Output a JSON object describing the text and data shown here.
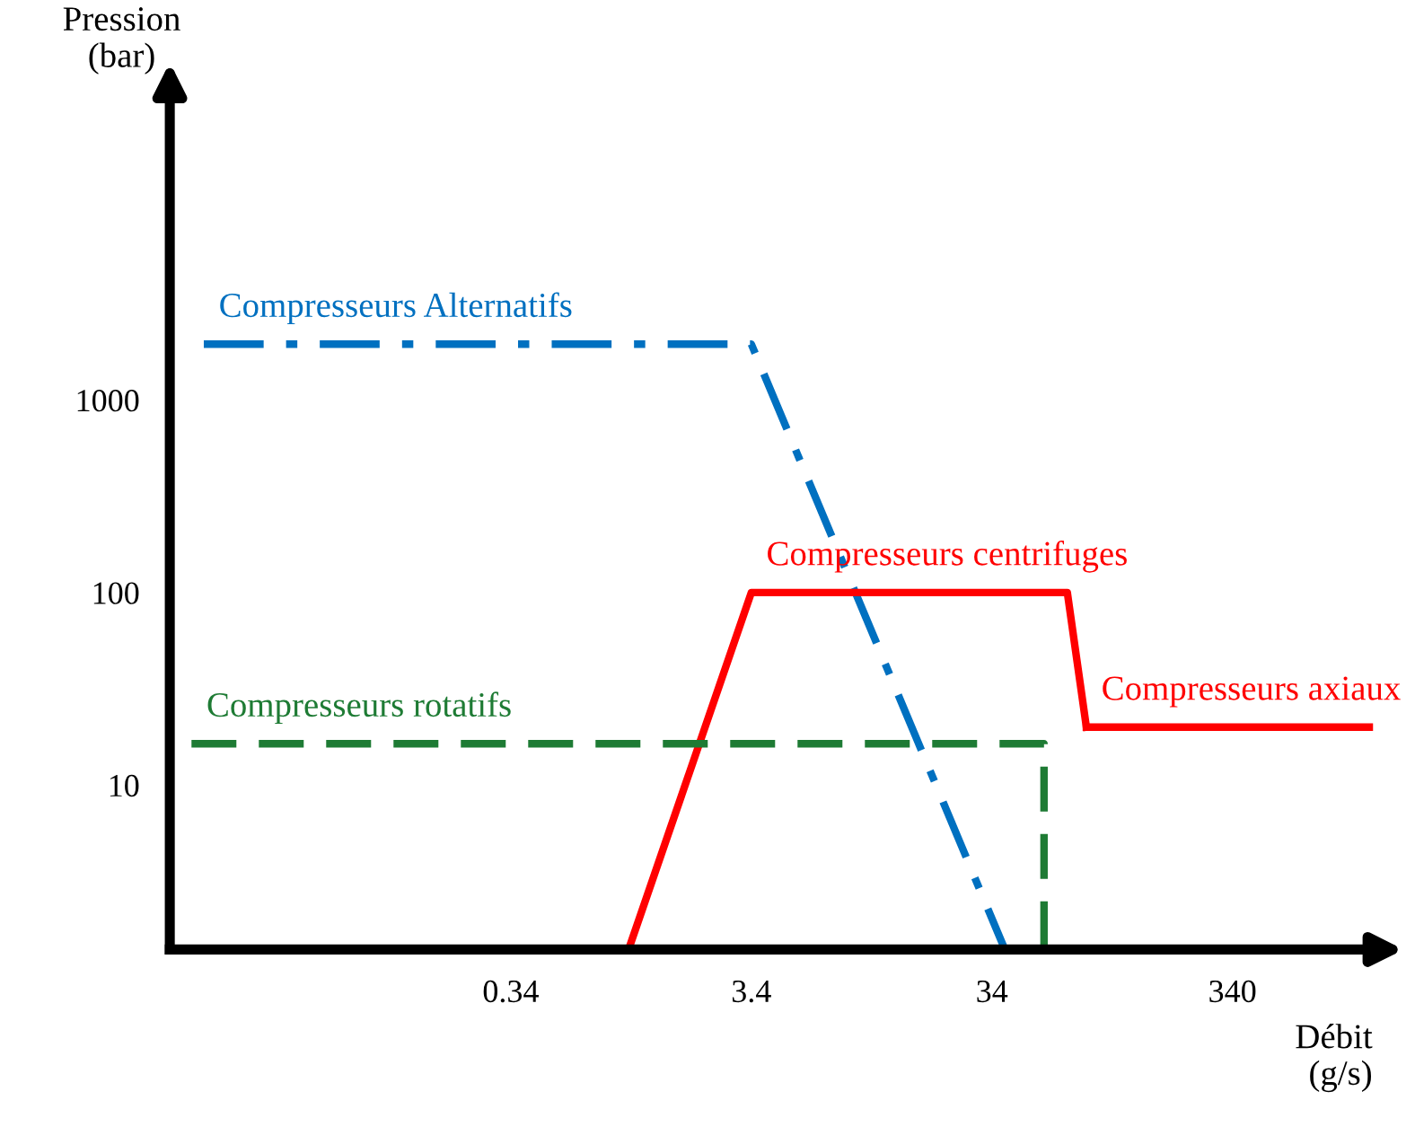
{
  "chart_data": {
    "type": "line",
    "xlabel": "Débit\n(g/s)",
    "ylabel": "Pression\n(bar)",
    "log": "xy",
    "xlim": [
      0.013,
      1300
    ],
    "ylim": [
      1.4,
      40000
    ],
    "xticks": [
      0.34,
      3.4,
      34,
      340
    ],
    "yticks": [
      10,
      100,
      1000
    ],
    "grid": false,
    "legend": false,
    "series": [
      {
        "name": "Compresseurs Alternatifs",
        "color": "#0070c0",
        "line_style": "dashdot",
        "x": [
          0.018,
          3.4,
          38.5
        ],
        "values": [
          1950,
          1950,
          1.4
        ]
      },
      {
        "name": "Compresseurs centrifuges",
        "color": "#ff0000",
        "line_style": "solid",
        "x": [
          1.05,
          3.4,
          70,
          84
        ],
        "values": [
          1.4,
          100,
          100,
          20
        ]
      },
      {
        "name": "Compresseurs axiaux",
        "color": "#ff0000",
        "line_style": "solid",
        "x": [
          84,
          1260
        ],
        "values": [
          20,
          20
        ]
      },
      {
        "name": "Compresseurs rotatifs",
        "color": "#1e7b34",
        "line_style": "dashed",
        "x": [
          0.016,
          56,
          56
        ],
        "values": [
          16.4,
          16.4,
          1.4
        ]
      }
    ]
  }
}
